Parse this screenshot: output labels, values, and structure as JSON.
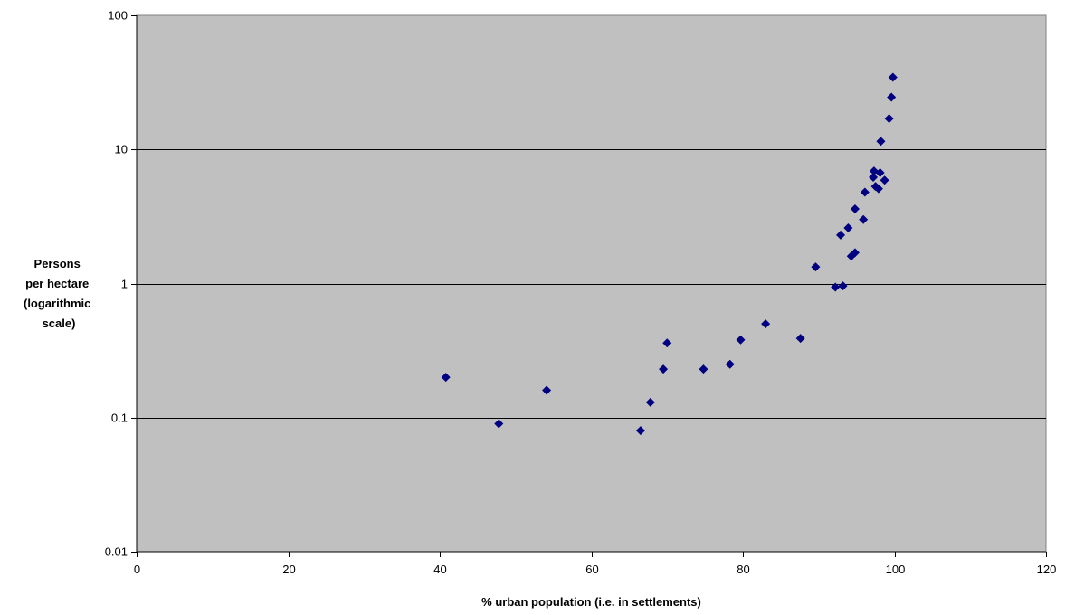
{
  "chart_data": {
    "type": "scatter",
    "title": "",
    "xlabel": "% urban population (i.e. in settlements)",
    "ylabel_lines": [
      "Persons",
      "per hectare",
      "(logarithmic",
      "scale)"
    ],
    "x_scale": "linear",
    "y_scale": "log",
    "xlim": [
      0,
      120
    ],
    "ylim": [
      0.01,
      100
    ],
    "x_ticks": [
      0,
      20,
      40,
      60,
      80,
      100,
      120
    ],
    "x_tick_labels": [
      "0",
      "20",
      "40",
      "60",
      "80",
      "100",
      "120"
    ],
    "y_ticks": [
      0.01,
      0.1,
      1,
      10,
      100
    ],
    "y_tick_labels": [
      "0.01",
      "0.1",
      "1",
      "10",
      "100"
    ],
    "grid": "horizontal major gridlines",
    "legend": "none",
    "plot_background": "#c0c0c0",
    "gridline_color": "#000000",
    "marker": "diamond",
    "marker_color": "#000080",
    "points": [
      {
        "x": 40.8,
        "y": 0.2
      },
      {
        "x": 47.8,
        "y": 0.09
      },
      {
        "x": 54.1,
        "y": 0.16
      },
      {
        "x": 66.5,
        "y": 0.08
      },
      {
        "x": 67.8,
        "y": 0.13
      },
      {
        "x": 69.5,
        "y": 0.23
      },
      {
        "x": 70.0,
        "y": 0.36
      },
      {
        "x": 74.8,
        "y": 0.23
      },
      {
        "x": 78.3,
        "y": 0.25
      },
      {
        "x": 79.7,
        "y": 0.38
      },
      {
        "x": 83.0,
        "y": 0.5
      },
      {
        "x": 87.6,
        "y": 0.39
      },
      {
        "x": 89.6,
        "y": 1.33
      },
      {
        "x": 92.2,
        "y": 0.94
      },
      {
        "x": 92.9,
        "y": 2.3
      },
      {
        "x": 93.2,
        "y": 0.96
      },
      {
        "x": 93.9,
        "y": 2.6
      },
      {
        "x": 94.3,
        "y": 1.6
      },
      {
        "x": 94.8,
        "y": 1.7
      },
      {
        "x": 94.8,
        "y": 3.6
      },
      {
        "x": 95.9,
        "y": 3.0
      },
      {
        "x": 96.1,
        "y": 4.8
      },
      {
        "x": 97.2,
        "y": 6.2
      },
      {
        "x": 97.3,
        "y": 6.9
      },
      {
        "x": 97.5,
        "y": 5.3
      },
      {
        "x": 97.9,
        "y": 5.1
      },
      {
        "x": 98.1,
        "y": 6.7
      },
      {
        "x": 98.2,
        "y": 11.5
      },
      {
        "x": 98.7,
        "y": 5.9
      },
      {
        "x": 99.3,
        "y": 17.0
      },
      {
        "x": 99.6,
        "y": 24.5
      },
      {
        "x": 99.8,
        "y": 34.5
      }
    ]
  }
}
